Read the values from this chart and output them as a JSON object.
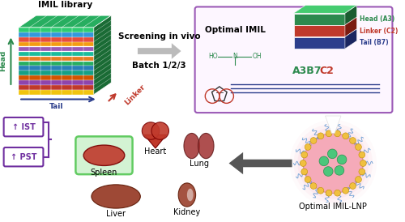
{
  "bg_color": "#ffffff",
  "cube_stripe_colors": [
    "#2ecc71",
    "#3498db",
    "#e74c3c",
    "#f39c12",
    "#9b59b6",
    "#1abc9c",
    "#e67e22",
    "#27ae60",
    "#2980b9",
    "#16a085",
    "#d35400",
    "#8e44ad",
    "#c0392b",
    "#f1c40f",
    "#2ecc71",
    "#3498db",
    "#e74c3c"
  ],
  "head_color": "#2d8a4e",
  "linker_color": "#c0392b",
  "tail_color": "#2c3e8c",
  "box_border_color": "#9b59b6",
  "arrow_color": "#888888",
  "lnp_pink": "#f4a0b0",
  "lnp_yellow": "#f0c040",
  "lnp_green": "#2ecc71",
  "lnp_blue_strand": "#3498db",
  "lnp_text": "Optimal IMIL-LNP",
  "ist_pst_border": "#7030a0",
  "ist_pst_text_color": "#7030a0",
  "organ_text_color": "#111111",
  "spleen_box_color": "#c8f0c8",
  "spleen_box_border": "#40c040",
  "label_imil_library": "IMIL library",
  "label_screening": "Screening in vivo",
  "label_batch": "Batch 1/2/3",
  "label_optimal_imil": "Optimal IMIL",
  "label_head": "Head (A3)",
  "label_linker": "Linker (C2)",
  "label_tail": "Tail (B7)",
  "label_a3b7": "A3B7",
  "label_c2": "C2",
  "label_ist": "↑ IST",
  "label_pst": "↑ PST",
  "label_spleen": "Spleen",
  "label_heart": "Heart",
  "label_lung": "Lung",
  "label_liver": "Liver",
  "label_kidney": "Kidney"
}
